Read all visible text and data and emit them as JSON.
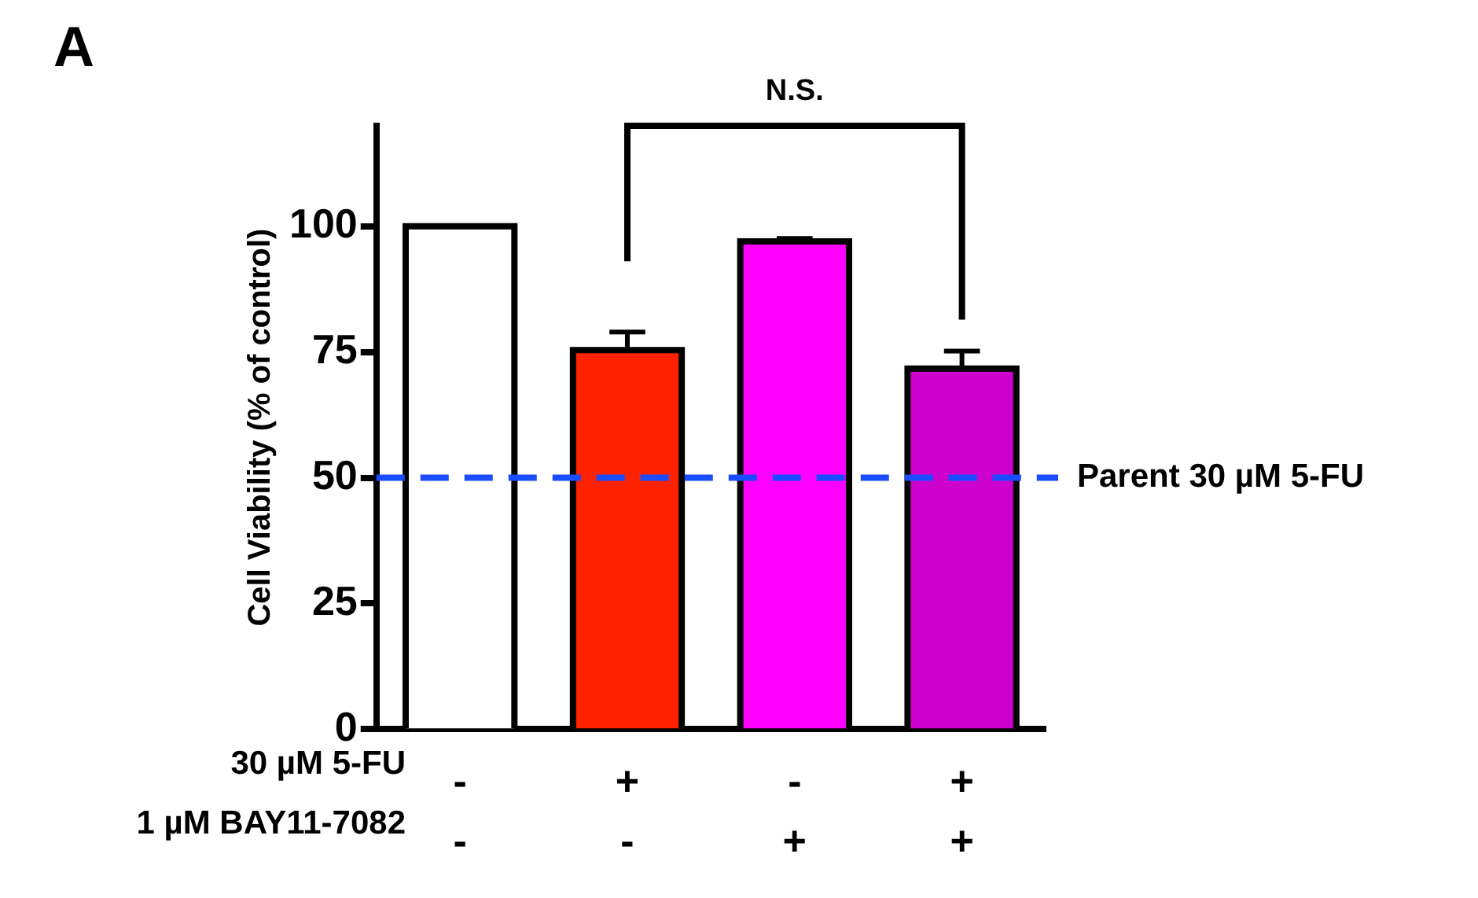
{
  "chart_data": {
    "type": "bar",
    "ylabel": "Cell Viability (% of control)",
    "categories": [
      "-\n-",
      "+\n-",
      "-\n+",
      "+\n+"
    ],
    "values": [
      100,
      75.4,
      97.0,
      71.7
    ],
    "errors": [
      null,
      3.6,
      0.6,
      3.5
    ],
    "colors": [
      "#ffffff",
      "#ff2200",
      "#ff00ff",
      "#cc00cc"
    ],
    "ylim": [
      0,
      120
    ],
    "yticks": [
      0,
      25,
      50,
      75,
      100
    ],
    "grid": false,
    "legend": false,
    "ref_lines": [
      {
        "axis": "y",
        "value": 50,
        "label": "Parent 30 µM 5-FU",
        "color": "#1a4dff",
        "line_style": "dashed"
      }
    ],
    "annotations": [
      "30 µM 5-FU",
      "1 µM BAY11-7082",
      "N.S.",
      "A"
    ]
  }
}
